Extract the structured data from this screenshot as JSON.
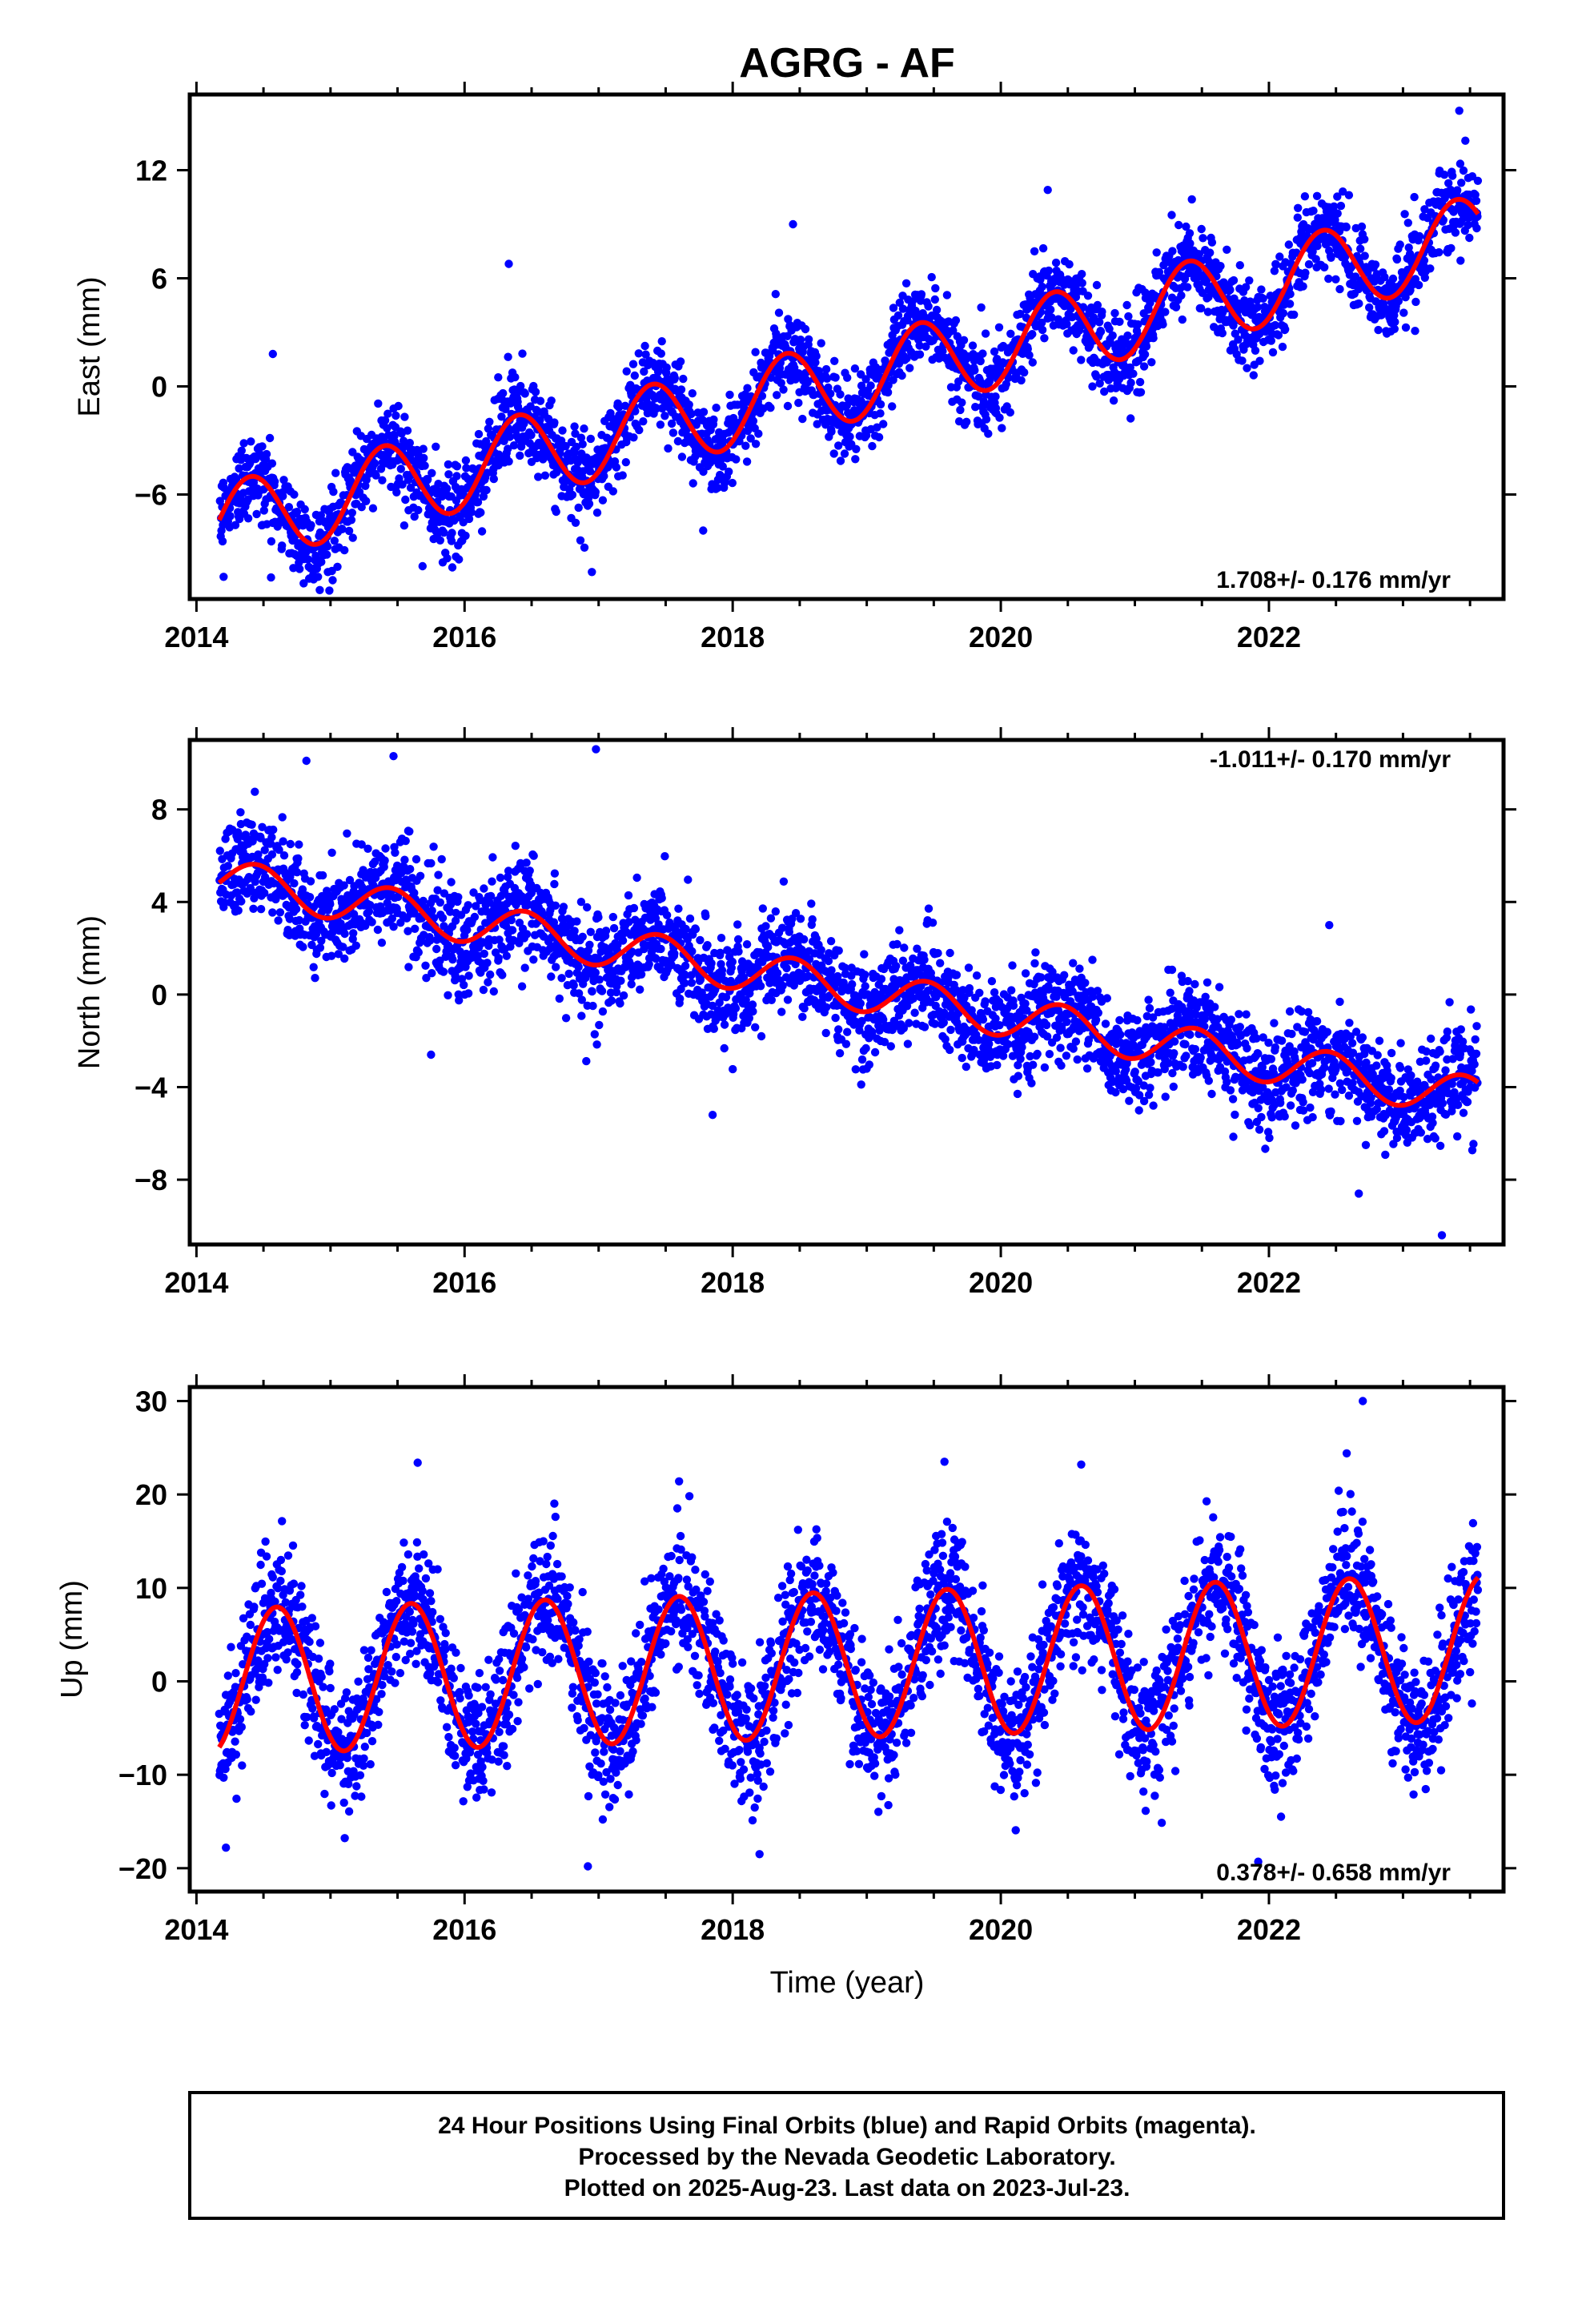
{
  "title": "AGRG - AF",
  "xlabel": "Time (year)",
  "colors": {
    "points": "#0000ff",
    "fit": "#ff0000",
    "frame": "#000000"
  },
  "footer": {
    "line1": "24 Hour Positions Using Final Orbits (blue) and Rapid Orbits (magenta).",
    "line2": "Processed by the Nevada Geodetic Laboratory.",
    "line3": "Plotted on 2025-Aug-23. Last data on 2023-Jul-23."
  },
  "chart_data": [
    {
      "type": "scatter",
      "name": "east",
      "ylabel": "East (mm)",
      "rate": "1.708+/- 0.176 mm/yr",
      "rate_position": "bottom-right",
      "xlim": [
        2013.95,
        2023.75
      ],
      "ylim": [
        -11.8,
        16.2
      ],
      "xticks": [
        2014,
        2016,
        2018,
        2020,
        2022
      ],
      "yticks": [
        -6,
        0,
        6,
        12
      ],
      "grid": false,
      "data_span": [
        2014.17,
        2023.56
      ],
      "model": {
        "offset": -7.7,
        "rate": 1.708,
        "annual_amplitude": 2.3,
        "annual_peak": 0.4
      },
      "scatter_sigma": 1.2,
      "outliers": [
        {
          "x": 2014.57,
          "y": 1.8
        },
        {
          "x": 2016.33,
          "y": 6.8
        },
        {
          "x": 2018.45,
          "y": 9.0
        },
        {
          "x": 2014.92,
          "y": -11.3
        },
        {
          "x": 2016.95,
          "y": -10.3
        },
        {
          "x": 2023.42,
          "y": 15.3
        },
        {
          "x": 2020.35,
          "y": 10.9
        },
        {
          "x": 2017.78,
          "y": -8.0
        }
      ]
    },
    {
      "type": "scatter",
      "name": "north",
      "ylabel": "North (mm)",
      "rate": "-1.011+/- 0.170 mm/yr",
      "rate_position": "top-right",
      "xlim": [
        2013.95,
        2023.75
      ],
      "ylim": [
        -10.8,
        11.0
      ],
      "xticks": [
        2014,
        2016,
        2018,
        2020,
        2022
      ],
      "yticks": [
        -8,
        -4,
        0,
        4,
        8
      ],
      "grid": false,
      "data_span": [
        2014.17,
        2023.56
      ],
      "model": {
        "offset": 5.0,
        "rate": -1.011,
        "annual_amplitude": 0.9,
        "annual_peak": 0.45
      },
      "scatter_sigma": 1.1,
      "outliers": [
        {
          "x": 2014.82,
          "y": 10.1
        },
        {
          "x": 2015.47,
          "y": 10.3
        },
        {
          "x": 2016.98,
          "y": 10.6
        },
        {
          "x": 2022.67,
          "y": -8.6
        },
        {
          "x": 2023.29,
          "y": -10.4
        },
        {
          "x": 2017.85,
          "y": -5.2
        },
        {
          "x": 2015.75,
          "y": -2.6
        },
        {
          "x": 2022.45,
          "y": 3.0
        }
      ]
    },
    {
      "type": "scatter",
      "name": "up",
      "ylabel": "Up (mm)",
      "rate": "0.378+/- 0.658 mm/yr",
      "rate_position": "bottom-right",
      "xlim": [
        2013.95,
        2023.75
      ],
      "ylim": [
        -22.5,
        31.5
      ],
      "xticks": [
        2014,
        2016,
        2018,
        2020,
        2022
      ],
      "yticks": [
        -20,
        -10,
        0,
        10,
        20,
        30
      ],
      "grid": false,
      "data_span": [
        2014.17,
        2023.56
      ],
      "model": {
        "offset": 0.0,
        "rate": 0.378,
        "annual_amplitude": 7.8,
        "annual_peak": 0.6
      },
      "scatter_sigma": 3.6,
      "outliers": [
        {
          "x": 2022.7,
          "y": 30.0
        },
        {
          "x": 2015.65,
          "y": 23.4
        },
        {
          "x": 2019.58,
          "y": 23.5
        },
        {
          "x": 2020.6,
          "y": 23.2
        },
        {
          "x": 2022.58,
          "y": 24.4
        },
        {
          "x": 2014.22,
          "y": -17.8
        },
        {
          "x": 2016.92,
          "y": -19.8
        },
        {
          "x": 2018.2,
          "y": -18.5
        },
        {
          "x": 2021.92,
          "y": -19.3
        },
        {
          "x": 2017.6,
          "y": 21.4
        }
      ]
    }
  ]
}
